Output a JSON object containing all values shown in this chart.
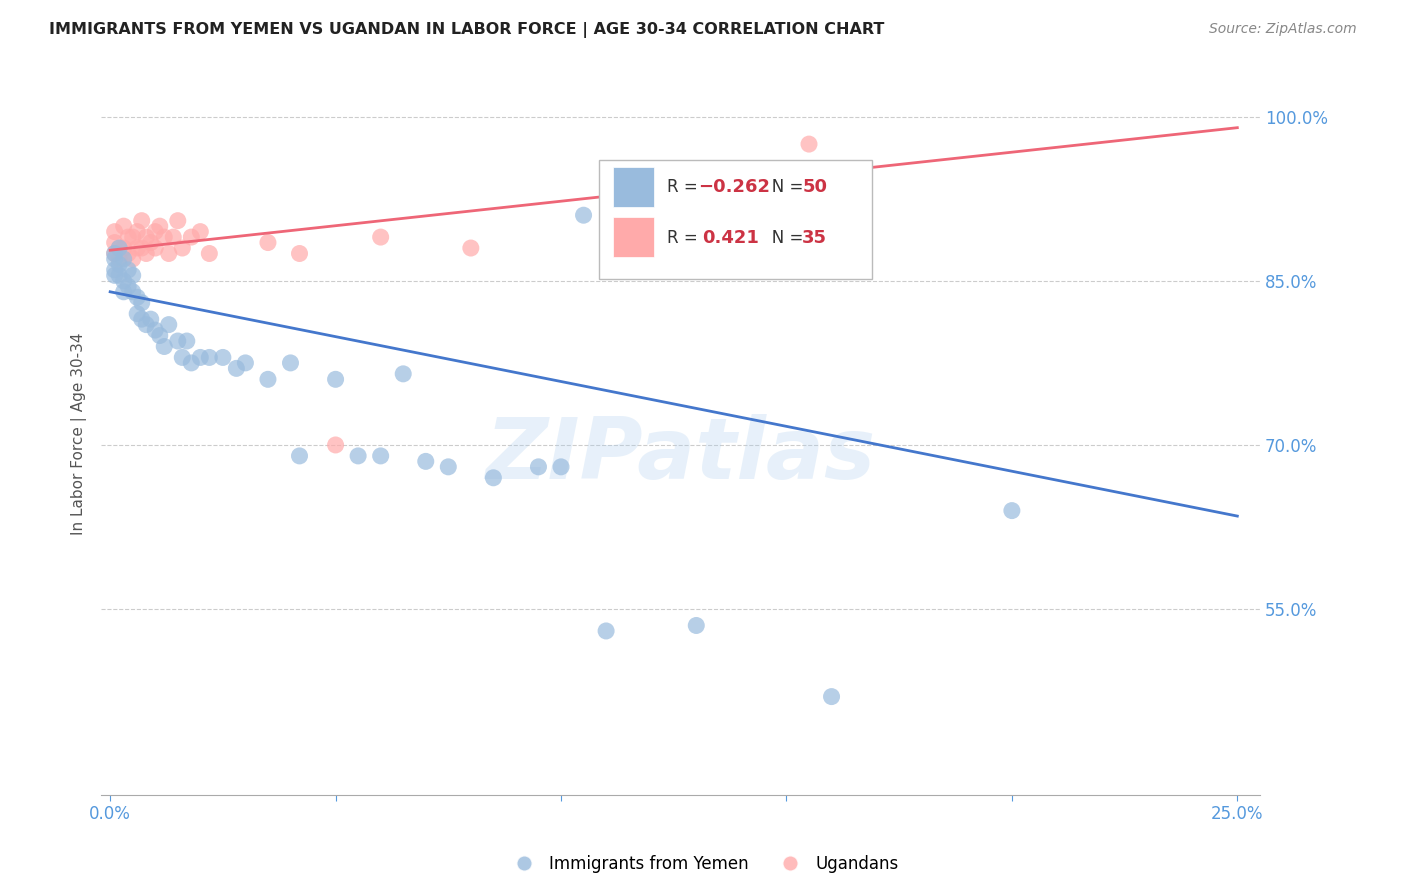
{
  "title": "IMMIGRANTS FROM YEMEN VS UGANDAN IN LABOR FORCE | AGE 30-34 CORRELATION CHART",
  "source": "Source: ZipAtlas.com",
  "ylabel": "In Labor Force | Age 30-34",
  "xlim": [
    -0.002,
    0.255
  ],
  "ylim": [
    0.38,
    1.04
  ],
  "yticks": [
    0.55,
    0.7,
    0.85,
    1.0
  ],
  "ytick_labels": [
    "55.0%",
    "70.0%",
    "85.0%",
    "100.0%"
  ],
  "xticks": [
    0.0,
    0.05,
    0.1,
    0.15,
    0.2,
    0.25
  ],
  "xtick_labels": [
    "0.0%",
    "",
    "",
    "",
    "",
    "25.0%"
  ],
  "blue_color": "#99BBDD",
  "pink_color": "#FFAAAA",
  "blue_line_color": "#4477CC",
  "pink_line_color": "#EE6677",
  "watermark": "ZIPatlas",
  "yemen_x": [
    0.001,
    0.001,
    0.001,
    0.001,
    0.002,
    0.002,
    0.002,
    0.003,
    0.003,
    0.003,
    0.004,
    0.004,
    0.005,
    0.005,
    0.006,
    0.006,
    0.007,
    0.007,
    0.008,
    0.009,
    0.01,
    0.011,
    0.012,
    0.013,
    0.015,
    0.016,
    0.017,
    0.018,
    0.02,
    0.022,
    0.025,
    0.028,
    0.03,
    0.035,
    0.04,
    0.042,
    0.05,
    0.055,
    0.06,
    0.065,
    0.07,
    0.075,
    0.085,
    0.095,
    0.1,
    0.105,
    0.11,
    0.13,
    0.16,
    0.2
  ],
  "yemen_y": [
    0.875,
    0.87,
    0.86,
    0.855,
    0.88,
    0.865,
    0.855,
    0.87,
    0.85,
    0.84,
    0.86,
    0.845,
    0.855,
    0.84,
    0.835,
    0.82,
    0.83,
    0.815,
    0.81,
    0.815,
    0.805,
    0.8,
    0.79,
    0.81,
    0.795,
    0.78,
    0.795,
    0.775,
    0.78,
    0.78,
    0.78,
    0.77,
    0.775,
    0.76,
    0.775,
    0.69,
    0.76,
    0.69,
    0.69,
    0.765,
    0.685,
    0.68,
    0.67,
    0.68,
    0.68,
    0.91,
    0.53,
    0.535,
    0.47,
    0.64
  ],
  "uganda_x": [
    0.001,
    0.001,
    0.001,
    0.002,
    0.002,
    0.003,
    0.003,
    0.004,
    0.004,
    0.005,
    0.005,
    0.006,
    0.006,
    0.007,
    0.007,
    0.008,
    0.008,
    0.009,
    0.01,
    0.01,
    0.011,
    0.012,
    0.013,
    0.014,
    0.015,
    0.016,
    0.018,
    0.02,
    0.022,
    0.035,
    0.042,
    0.05,
    0.06,
    0.08,
    0.155
  ],
  "uganda_y": [
    0.875,
    0.885,
    0.895,
    0.87,
    0.88,
    0.88,
    0.9,
    0.875,
    0.89,
    0.87,
    0.89,
    0.88,
    0.895,
    0.88,
    0.905,
    0.875,
    0.89,
    0.885,
    0.88,
    0.895,
    0.9,
    0.89,
    0.875,
    0.89,
    0.905,
    0.88,
    0.89,
    0.895,
    0.875,
    0.885,
    0.875,
    0.7,
    0.89,
    0.88,
    0.975
  ],
  "blue_line_x": [
    0.0,
    0.25
  ],
  "blue_line_y": [
    0.84,
    0.635
  ],
  "pink_line_x": [
    0.0,
    0.25
  ],
  "pink_line_y": [
    0.878,
    0.99
  ]
}
